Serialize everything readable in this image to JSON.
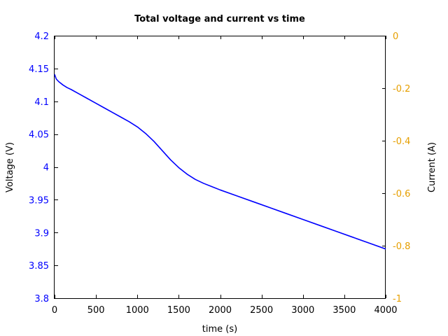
{
  "chart_data": {
    "type": "line",
    "title": "Total voltage and current vs time",
    "xlabel": "time (s)",
    "ylabel": "Voltage (V)",
    "y2label": "Current (A)",
    "xlim": [
      0,
      4000
    ],
    "ylim": [
      3.8,
      4.2
    ],
    "y2lim": [
      -1,
      0
    ],
    "xticks": [
      0,
      500,
      1000,
      1500,
      2000,
      2500,
      3000,
      3500,
      4000
    ],
    "xtick_labels": [
      "0",
      "500",
      "1000",
      "1500",
      "2000",
      "2500",
      "3000",
      "3500",
      "4000"
    ],
    "yticks": [
      3.8,
      3.85,
      3.9,
      3.95,
      4.0,
      4.05,
      4.1,
      4.15,
      4.2
    ],
    "ytick_labels": [
      "3.8",
      "3.85",
      "3.9",
      "3.95",
      "4",
      "4.05",
      "4.1",
      "4.15",
      "4.2"
    ],
    "y2ticks": [
      -1,
      -0.8,
      -0.6,
      -0.4,
      -0.2,
      0
    ],
    "y2tick_labels": [
      "-1",
      "-0.8",
      "-0.6",
      "-0.4",
      "-0.2",
      "0"
    ],
    "grid": false,
    "colors": {
      "voltage": "#0000ff",
      "current_axis": "#e69f00",
      "axes": "#000000"
    },
    "series": [
      {
        "axis": "left",
        "color": "#0000ff",
        "x": [
          0,
          20,
          50,
          100,
          150,
          200,
          300,
          400,
          500,
          600,
          700,
          800,
          900,
          1000,
          1100,
          1200,
          1300,
          1400,
          1500,
          1600,
          1700,
          1800,
          1900,
          2000,
          2200,
          2400,
          2600,
          2800,
          3000,
          3200,
          3400,
          3600,
          3800,
          4000
        ],
        "y": [
          4.141,
          4.134,
          4.13,
          4.125,
          4.121,
          4.118,
          4.111,
          4.104,
          4.097,
          4.09,
          4.083,
          4.076,
          4.069,
          4.061,
          4.051,
          4.039,
          4.025,
          4.011,
          3.999,
          3.989,
          3.981,
          3.975,
          3.97,
          3.965,
          3.956,
          3.947,
          3.938,
          3.929,
          3.92,
          3.911,
          3.902,
          3.893,
          3.884,
          3.875
        ]
      }
    ]
  }
}
